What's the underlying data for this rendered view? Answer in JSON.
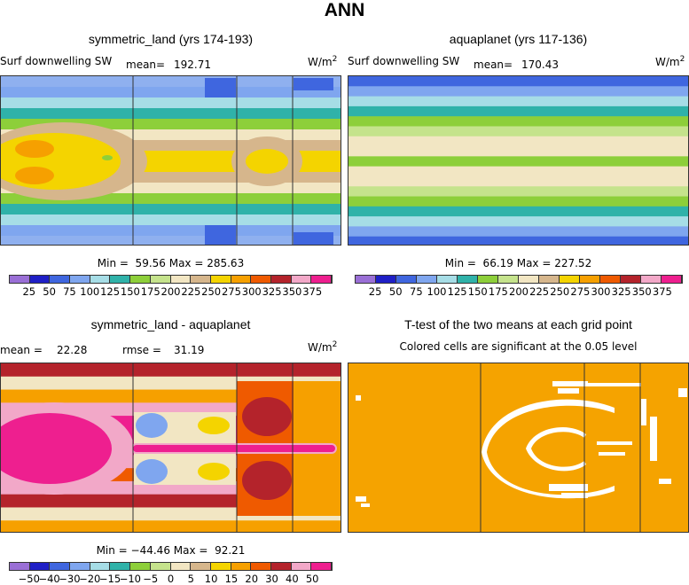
{
  "figure": {
    "title": "ANN",
    "panels": [
      {
        "id": "p1",
        "title": "symmetric_land (yrs 174-193)",
        "left_label": "Surf downwelling SW",
        "stat_label": "mean=",
        "stat_value": "192.71",
        "units": "W/m",
        "units_sup": "2",
        "minmax": "Min =  59.56 Max = 285.63"
      },
      {
        "id": "p2",
        "title": "aquaplanet (yrs 117-136)",
        "left_label": "Surf downwelling SW",
        "stat_label": "mean=",
        "stat_value": "170.43",
        "units": "W/m",
        "units_sup": "2",
        "minmax": "Min =  66.19 Max = 227.52"
      },
      {
        "id": "p3",
        "title": "symmetric_land - aquaplanet",
        "left_label": "mean =",
        "stat_value": "22.28",
        "rmse_label": "rmse =",
        "rmse_value": "31.19",
        "units": "W/m",
        "units_sup": "2",
        "minmax": "Min = −44.46 Max =  92.21"
      },
      {
        "id": "p4",
        "title": "T-test of the two means at each grid point",
        "subtitle": "Colored cells are significant at the 0.05 level"
      }
    ]
  },
  "chart_data": [
    {
      "type": "heatmap",
      "title": "symmetric_land (yrs 174-193)",
      "variable": "Surf downwelling SW",
      "units": "W/m2",
      "mean": 192.71,
      "min": 59.56,
      "max": 285.63,
      "colorbar_levels": [
        25,
        50,
        75,
        100,
        125,
        150,
        175,
        200,
        225,
        250,
        275,
        300,
        325,
        350,
        375
      ],
      "colorbar_tick_labels": [
        "25",
        "50",
        "75",
        "100",
        "125",
        "150",
        "175",
        "200",
        "225",
        "250",
        "275",
        "300",
        "325",
        "350",
        "375"
      ],
      "colorbar_colors": [
        "#9a6fd6",
        "#1f1fc6",
        "#3f66df",
        "#7fa6ef",
        "#a6dde6",
        "#2fb2a9",
        "#8dcf3a",
        "#c5e38c",
        "#f2e6c3",
        "#d6b68c",
        "#f4d400",
        "#f6a000",
        "#ef5a00",
        "#b4232b",
        "#f2a8c8",
        "#ee1f8f"
      ],
      "row_profile": [
        "#8fb0ef",
        "#7fa6ef",
        "#a6dde6",
        "#2fb2a9",
        "#8dcf3a",
        "#f2e6c3",
        "#d6b68c",
        "#f4d400",
        "#f4d400",
        "#d6b68c",
        "#f2e6c3",
        "#8dcf3a",
        "#2fb2a9",
        "#a6dde6",
        "#7fa6ef",
        "#8fb0ef"
      ]
    },
    {
      "type": "heatmap",
      "title": "aquaplanet (yrs 117-136)",
      "variable": "Surf downwelling SW",
      "units": "W/m2",
      "mean": 170.43,
      "min": 66.19,
      "max": 227.52,
      "colorbar_levels": [
        25,
        50,
        75,
        100,
        125,
        150,
        175,
        200,
        225,
        250,
        275,
        300,
        325,
        350,
        375
      ],
      "colorbar_tick_labels": [
        "25",
        "50",
        "75",
        "100",
        "125",
        "150",
        "175",
        "200",
        "225",
        "250",
        "275",
        "300",
        "325",
        "350",
        "375"
      ],
      "colorbar_colors": [
        "#9a6fd6",
        "#1f1fc6",
        "#3f66df",
        "#7fa6ef",
        "#a6dde6",
        "#2fb2a9",
        "#8dcf3a",
        "#c5e38c",
        "#f2e6c3",
        "#d6b68c",
        "#f4d400",
        "#f6a000",
        "#ef5a00",
        "#b4232b",
        "#f2a8c8",
        "#ee1f8f"
      ],
      "row_profile": [
        "#3f66df",
        "#7fa6ef",
        "#a6dde6",
        "#2fb2a9",
        "#8dcf3a",
        "#c5e38c",
        "#f2e6c3",
        "#f2e6c3",
        "#8dcf3a",
        "#f2e6c3",
        "#f2e6c3",
        "#c5e38c",
        "#8dcf3a",
        "#2fb2a9",
        "#a6dde6",
        "#7fa6ef",
        "#3f66df"
      ]
    },
    {
      "type": "heatmap",
      "title": "symmetric_land - aquaplanet",
      "units": "W/m2",
      "mean": 22.28,
      "rmse": 31.19,
      "min": -44.46,
      "max": 92.21,
      "colorbar_levels": [
        -50,
        -40,
        -30,
        -20,
        -15,
        -10,
        -5,
        0,
        5,
        10,
        15,
        20,
        30,
        40,
        50
      ],
      "colorbar_tick_labels": [
        "−50",
        "−40",
        "−30",
        "−20",
        "−15",
        "−10",
        "−5",
        "0",
        "5",
        "10",
        "15",
        "20",
        "30",
        "40",
        "50"
      ],
      "colorbar_colors": [
        "#9a6fd6",
        "#1f1fc6",
        "#3f66df",
        "#7fa6ef",
        "#a6dde6",
        "#2fb2a9",
        "#8dcf3a",
        "#c5e38c",
        "#f2e6c3",
        "#d6b68c",
        "#f4d400",
        "#f6a000",
        "#ef5a00",
        "#b4232b",
        "#f2a8c8",
        "#ee1f8f"
      ],
      "row_profile": [
        "#b4232b",
        "#f2e6c3",
        "#f6a000",
        "#f2a8c8",
        "#ee1f8f",
        "#ee1f8f",
        "#ee1f8f",
        "#f2a8c8",
        "#ef5a00",
        "#f2a8c8",
        "#b4232b",
        "#f2e6c3",
        "#f6a000"
      ]
    },
    {
      "type": "heatmap",
      "title": "T-test of the two means at each grid point",
      "subtitle": "Colored cells are significant at the 0.05 level",
      "significant_color": "#f5a300",
      "insignificant_color": "#ffffff"
    }
  ]
}
